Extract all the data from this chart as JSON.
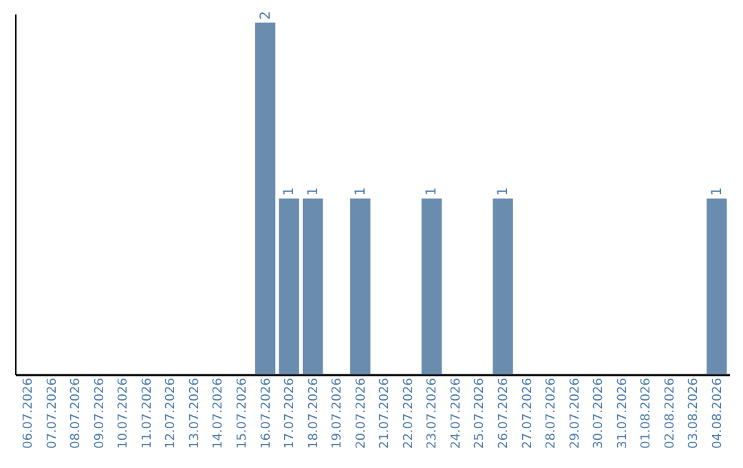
{
  "chart_data": {
    "type": "bar",
    "categories": [
      "06.07.2026",
      "07.07.2026",
      "08.07.2026",
      "09.07.2026",
      "10.07.2026",
      "11.07.2026",
      "12.07.2026",
      "13.07.2026",
      "14.07.2026",
      "15.07.2026",
      "16.07.2026",
      "17.07.2026",
      "18.07.2026",
      "19.07.2026",
      "20.07.2026",
      "21.07.2026",
      "22.07.2026",
      "23.07.2026",
      "24.07.2026",
      "25.07.2026",
      "26.07.2026",
      "27.07.2026",
      "28.07.2026",
      "29.07.2026",
      "30.07.2026",
      "31.07.2026",
      "01.08.2026",
      "02.08.2026",
      "03.08.2026",
      "04.08.2026"
    ],
    "values": [
      0,
      0,
      0,
      0,
      0,
      0,
      0,
      0,
      0,
      0,
      2,
      1,
      1,
      0,
      1,
      0,
      0,
      1,
      0,
      0,
      1,
      0,
      0,
      0,
      0,
      0,
      0,
      0,
      0,
      1
    ],
    "value_labels": [
      null,
      null,
      null,
      null,
      null,
      null,
      null,
      null,
      null,
      null,
      "2",
      "1",
      "1",
      null,
      "1",
      null,
      null,
      "1",
      null,
      null,
      "1",
      null,
      null,
      null,
      null,
      null,
      null,
      null,
      null,
      "1"
    ],
    "color": "#6a8caf",
    "ylim": [
      0,
      2.05
    ],
    "grid": false
  }
}
